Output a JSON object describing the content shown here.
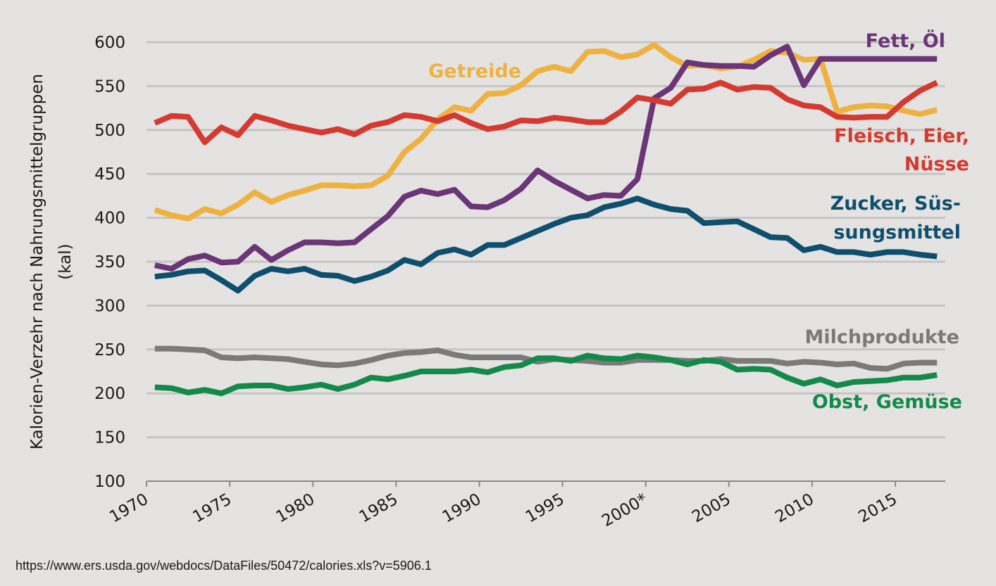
{
  "source": "https://www.ers.usda.gov/webdocs/DataFiles/50472/calories.xls?v=5906.1",
  "chart_data": {
    "type": "line",
    "ylabel": [
      "Kalorien-Verzehr nach Nahrungsmittelgruppen",
      "(kal)"
    ],
    "ylim": [
      100,
      600
    ],
    "yticks": [
      100,
      150,
      200,
      250,
      300,
      350,
      400,
      450,
      500,
      550,
      600
    ],
    "xlim": [
      1970,
      2018
    ],
    "xticks": [
      {
        "value": 1970,
        "label": "1970"
      },
      {
        "value": 1975,
        "label": "1975"
      },
      {
        "value": 1980,
        "label": "1980"
      },
      {
        "value": 1985,
        "label": "1985"
      },
      {
        "value": 1990,
        "label": "1990"
      },
      {
        "value": 1995,
        "label": "1995"
      },
      {
        "value": 2000,
        "label": "2000*"
      },
      {
        "value": 2005,
        "label": "2005"
      },
      {
        "value": 2010,
        "label": "2010"
      },
      {
        "value": 2015,
        "label": "2015"
      }
    ],
    "grid": "horizontal",
    "x": [
      1970.5,
      1971.5,
      1972.5,
      1973.5,
      1974.5,
      1975.5,
      1976.5,
      1977.5,
      1978.5,
      1979.5,
      1980.5,
      1981.5,
      1982.5,
      1983.5,
      1984.5,
      1985.5,
      1986.5,
      1987.5,
      1988.5,
      1989.5,
      1990.5,
      1991.5,
      1992.5,
      1993.5,
      1994.5,
      1995.5,
      1996.5,
      1997.5,
      1998.5,
      1999.5,
      2000.5,
      2001.5,
      2002.5,
      2003.5,
      2004.5,
      2005.5,
      2006.5,
      2007.5,
      2008.5,
      2009.5,
      2010.5,
      2011.5,
      2012.5,
      2013.5,
      2014.5,
      2015.5,
      2016.5,
      2017.5
    ],
    "series": [
      {
        "name": "Getreide",
        "color": "#efb140",
        "label_lines": [
          "Getreide"
        ],
        "values": [
          409,
          403,
          399,
          410,
          405,
          415,
          429,
          418,
          426,
          431,
          437,
          437,
          436,
          437,
          448,
          475,
          490,
          512,
          526,
          522,
          541,
          542,
          551,
          567,
          572,
          567,
          589,
          590,
          583,
          586,
          597,
          583,
          573,
          574,
          570,
          572,
          580,
          590,
          588,
          580,
          581,
          521,
          526,
          528,
          527,
          522,
          518,
          523
        ]
      },
      {
        "name": "Fett, Öl",
        "color": "#6b3577",
        "label_lines": [
          "Fett, Öl"
        ],
        "values": [
          346,
          342,
          353,
          357,
          349,
          350,
          367,
          352,
          363,
          372,
          372,
          371,
          372,
          387,
          402,
          424,
          431,
          427,
          432,
          413,
          412,
          420,
          433,
          454,
          442,
          432,
          422,
          426,
          425,
          444,
          536,
          548,
          577,
          574,
          573,
          573,
          572,
          585,
          595,
          551,
          581,
          581,
          581,
          581,
          581,
          581,
          581,
          581
        ]
      },
      {
        "name": "Fleisch, Eier, Nüsse",
        "color": "#d43a2f",
        "label_lines": [
          "Fleisch, Eier,",
          "Nüsse"
        ],
        "values": [
          508,
          516,
          515,
          486,
          503,
          494,
          516,
          511,
          505,
          501,
          497,
          501,
          495,
          505,
          509,
          517,
          515,
          510,
          517,
          508,
          501,
          504,
          511,
          510,
          514,
          512,
          509,
          509,
          521,
          537,
          534,
          530,
          546,
          547,
          554,
          546,
          549,
          548,
          535,
          528,
          526,
          515,
          514,
          515,
          515,
          532,
          545,
          554
        ]
      },
      {
        "name": "Zucker, Süssungsmittel",
        "color": "#0f4f6e",
        "label_lines": [
          "Zucker, Süs-",
          "sungsmittel"
        ],
        "values": [
          333,
          335,
          339,
          340,
          329,
          317,
          334,
          342,
          339,
          342,
          335,
          334,
          328,
          333,
          340,
          352,
          347,
          360,
          364,
          358,
          369,
          369,
          377,
          385,
          393,
          400,
          403,
          412,
          416,
          422,
          415,
          410,
          408,
          394,
          395,
          396,
          387,
          378,
          377,
          363,
          367,
          361,
          361,
          358,
          361,
          361,
          358,
          356
        ]
      },
      {
        "name": "Milchprodukte",
        "color": "#7a7a7a",
        "label_lines": [
          "Milchprodukte"
        ],
        "values": [
          251,
          251,
          250,
          249,
          241,
          240,
          241,
          240,
          239,
          236,
          233,
          232,
          234,
          238,
          243,
          246,
          247,
          249,
          244,
          241,
          241,
          241,
          241,
          236,
          239,
          238,
          237,
          235,
          235,
          238,
          238,
          238,
          237,
          237,
          239,
          237,
          237,
          237,
          234,
          236,
          235,
          233,
          234,
          229,
          228,
          234,
          235,
          235
        ]
      },
      {
        "name": "Obst, Gemüse",
        "color": "#138a4a",
        "label_lines": [
          "Obst, Gemüse"
        ],
        "values": [
          207,
          206,
          201,
          204,
          200,
          208,
          209,
          209,
          205,
          207,
          210,
          205,
          210,
          218,
          216,
          220,
          225,
          225,
          225,
          227,
          224,
          230,
          232,
          240,
          240,
          237,
          243,
          240,
          239,
          243,
          241,
          238,
          233,
          238,
          236,
          227,
          228,
          227,
          218,
          211,
          216,
          209,
          213,
          214,
          215,
          218,
          218,
          221
        ]
      }
    ]
  }
}
